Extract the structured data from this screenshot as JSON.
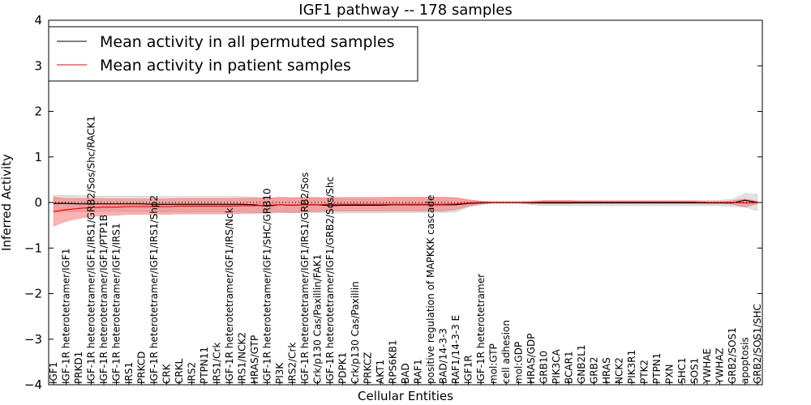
{
  "chart_data": {
    "type": "line",
    "title": "IGF1 pathway -- 178 samples",
    "xlabel": "Cellular Entities",
    "ylabel": "Inferred Activity",
    "ylim": [
      -4,
      4
    ],
    "yticks": [
      4,
      3,
      2,
      1,
      0,
      -1,
      -2,
      -3,
      -4
    ],
    "ytick_labels": [
      "4",
      "3",
      "2",
      "1",
      "0",
      "−1",
      "−2",
      "−3",
      "−4"
    ],
    "grid": false,
    "legend": {
      "position": "top-left",
      "entries": [
        {
          "label": "Mean activity in all permuted samples",
          "color": "#000000"
        },
        {
          "label": "Mean activity in patient samples",
          "color": "#ff0000"
        }
      ]
    },
    "categories": [
      "IGF1",
      "IGF-1R heterotetramer/IGF1",
      "PRKD1",
      "IGF-1R heterotetramer/IGF1/IRS1/GRB2/Sos/Shc/RACK1",
      "IGF-1R heterotetramer/IGF1/PTP1B",
      "IGF-1R heterotetramer/IGF1/IRS1",
      "IRS1",
      "PRKCD",
      "IGF-1R heterotetramer/IGF1/IRS1/Shp2",
      "CRK",
      "CRKL",
      "IRS2",
      "PTPN11",
      "IRS1/Crk",
      "IGF-1R heterotetramer/IGF1/IRS/Nck",
      "IRS1/NCK2",
      "HRAS/GTP",
      "IGF-1R heterotetramer/IGF1/SHC/GRB10",
      "PI3K",
      "IRS2/Crk",
      "IGF-1R heterotetramer/IGF1/IRS1/GRB2/Sos",
      "Crk/p130 Cas/Paxillin/FAK1",
      "IGF-1R heterotetramer/IGF1/GRB2/Sos/Shc",
      "PDPK1",
      "Crk/p130 Cas/Paxillin",
      "PRKCZ",
      "AKT1",
      "RPS6KB1",
      "BAD",
      "RAF1",
      "positive regulation of MAPKKK cascade",
      "BAD/14-3-3",
      "RAF1/14-3-3 E",
      "IGF1R",
      "IGF-1R heterotetramer",
      "mol:GTP",
      "cell adhesion",
      "mol:GDP",
      "HRAS/GDP",
      "GRB10",
      "PIK3CA",
      "BCAR1",
      "GNB2L1",
      "GRB2",
      "HRAS",
      "NCK2",
      "PIK3R1",
      "PTK2",
      "PTPN1",
      "PXN",
      "SHC1",
      "SOS1",
      "YWHAE",
      "YWHAZ",
      "GRB2/SOS1",
      "apoptosis",
      "GRB2/SOS1/SHC"
    ],
    "series": [
      {
        "name": "Mean activity in all permuted samples",
        "color": "#000000",
        "band_color": "#aaaaaa",
        "values": [
          -0.02,
          -0.02,
          -0.03,
          -0.03,
          -0.03,
          -0.03,
          -0.03,
          -0.03,
          -0.04,
          -0.04,
          -0.04,
          -0.04,
          -0.04,
          -0.04,
          -0.04,
          -0.04,
          -0.05,
          -0.08,
          -0.05,
          -0.06,
          -0.05,
          -0.05,
          -0.07,
          -0.06,
          -0.06,
          -0.06,
          -0.06,
          -0.05,
          -0.05,
          -0.05,
          -0.05,
          -0.05,
          -0.05,
          -0.02,
          -0.01,
          0.0,
          0.0,
          0.0,
          -0.01,
          -0.01,
          -0.01,
          -0.01,
          -0.01,
          -0.01,
          -0.01,
          -0.01,
          -0.01,
          -0.01,
          -0.01,
          -0.01,
          -0.01,
          -0.01,
          -0.01,
          -0.01,
          -0.01,
          0.05,
          0.0
        ],
        "band": [
          0.18,
          0.18,
          0.18,
          0.17,
          0.17,
          0.17,
          0.17,
          0.17,
          0.17,
          0.17,
          0.17,
          0.17,
          0.17,
          0.17,
          0.17,
          0.17,
          0.17,
          0.17,
          0.17,
          0.17,
          0.17,
          0.17,
          0.17,
          0.17,
          0.17,
          0.17,
          0.17,
          0.17,
          0.17,
          0.17,
          0.17,
          0.17,
          0.16,
          0.08,
          0.04,
          0.02,
          0.02,
          0.02,
          0.04,
          0.06,
          0.06,
          0.06,
          0.06,
          0.06,
          0.06,
          0.06,
          0.06,
          0.06,
          0.06,
          0.06,
          0.06,
          0.06,
          0.06,
          0.06,
          0.08,
          0.15,
          0.18
        ]
      },
      {
        "name": "Mean activity in patient samples",
        "color": "#ff0000",
        "band_color": "#ff5555",
        "values": [
          -0.2,
          -0.16,
          -0.13,
          -0.11,
          -0.1,
          -0.1,
          -0.09,
          -0.09,
          -0.09,
          -0.09,
          -0.08,
          -0.08,
          -0.08,
          -0.08,
          -0.08,
          -0.07,
          -0.07,
          -0.06,
          -0.05,
          -0.06,
          -0.05,
          -0.05,
          -0.04,
          -0.04,
          -0.04,
          -0.04,
          -0.04,
          -0.04,
          -0.04,
          -0.04,
          -0.04,
          -0.04,
          -0.03,
          -0.01,
          0.0,
          0.0,
          0.0,
          0.0,
          0.0,
          0.01,
          0.01,
          0.01,
          0.01,
          0.01,
          0.01,
          0.01,
          0.01,
          0.01,
          0.01,
          0.01,
          0.01,
          0.01,
          0.0,
          0.0,
          0.0,
          -0.01,
          0.0
        ],
        "band": [
          0.32,
          0.25,
          0.22,
          0.2,
          0.19,
          0.18,
          0.17,
          0.17,
          0.17,
          0.17,
          0.17,
          0.17,
          0.17,
          0.17,
          0.17,
          0.17,
          0.17,
          0.16,
          0.16,
          0.16,
          0.16,
          0.15,
          0.15,
          0.15,
          0.15,
          0.15,
          0.15,
          0.15,
          0.15,
          0.15,
          0.15,
          0.15,
          0.13,
          0.07,
          0.03,
          0.01,
          0.01,
          0.01,
          0.02,
          0.03,
          0.03,
          0.03,
          0.02,
          0.02,
          0.02,
          0.02,
          0.02,
          0.02,
          0.02,
          0.02,
          0.02,
          0.02,
          0.02,
          0.02,
          0.04,
          0.09,
          0.03
        ]
      }
    ]
  }
}
